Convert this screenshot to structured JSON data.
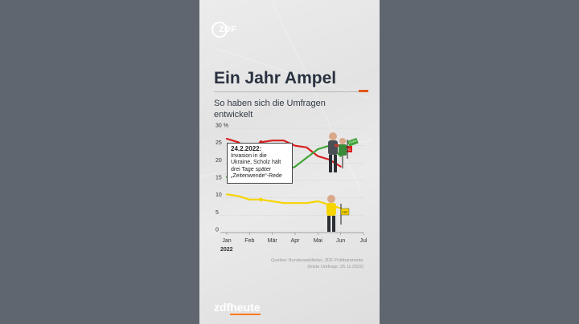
{
  "brand": {
    "logo_text": "ZDF",
    "footer_zdf": "zdf",
    "footer_heute": "heute"
  },
  "header": {
    "title": "Ein Jahr Ampel",
    "subtitle": "So haben sich die Umfragen entwickelt"
  },
  "annotation": {
    "date": "24.2.2022:",
    "text": "Invasion in die Ukraine, Scholz hält drei Tage später „Zeitenwende“-Rede"
  },
  "sources": {
    "line1": "Quellen: Bundeswahlleiter, ZDF-Politbarometer",
    "line2": "(letzte Umfrage: 25.11.2022)"
  },
  "badges": {
    "gruene": "Grüne",
    "spd": "SPD",
    "fdp": "FDP"
  },
  "colors": {
    "spd": "#d81f1f",
    "gruene": "#3fa535",
    "fdp": "#f5d400"
  },
  "chart_data": {
    "type": "line",
    "title": "Ein Jahr Ampel",
    "subtitle": "So haben sich die Umfragen entwickelt",
    "xlabel": "",
    "ylabel": "",
    "y_unit_label": "30 %",
    "ylim": [
      0,
      30
    ],
    "yticks": [
      0,
      5,
      10,
      15,
      20,
      25,
      30
    ],
    "xticks": [
      "Jan",
      "Feb",
      "Mär",
      "Apr",
      "Mai",
      "Jun",
      "Jul"
    ],
    "x_year_label": "2022",
    "grid": true,
    "x": [
      0,
      0.5,
      1,
      1.5,
      2,
      2.5,
      3,
      3.5,
      4,
      4.5,
      5
    ],
    "series": [
      {
        "name": "SPD",
        "color": "#d81f1f",
        "values": [
          27,
          26,
          24,
          26,
          26.5,
          26.5,
          25,
          24.5,
          22,
          21,
          19
        ]
      },
      {
        "name": "Grüne",
        "color": "#3fa535",
        "values": [
          16,
          16,
          16.5,
          17,
          17,
          17.5,
          19,
          21.5,
          24,
          25,
          22
        ]
      },
      {
        "name": "FDP",
        "color": "#f5d400",
        "values": [
          11,
          10.5,
          9.5,
          9.5,
          9,
          8.5,
          8.5,
          8.5,
          9,
          8,
          7
        ]
      }
    ]
  }
}
